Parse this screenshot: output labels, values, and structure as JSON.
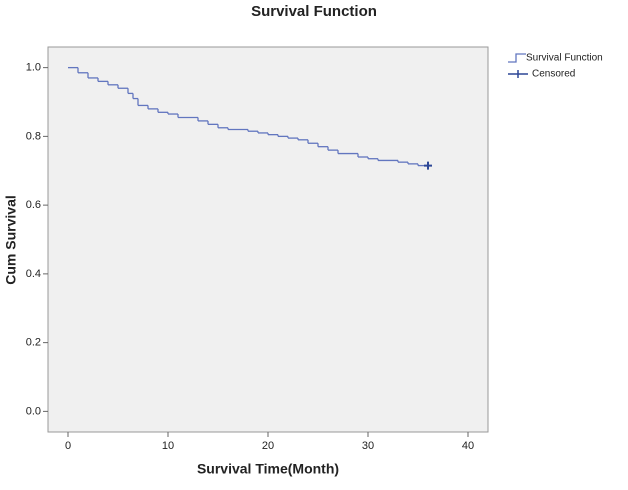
{
  "chart_data": {
    "type": "step",
    "title": "Survival Function",
    "x_label": "Survival Time(Month)",
    "y_label": "Cum Survival",
    "xlim": [
      -2,
      42
    ],
    "ylim": [
      -0.06,
      1.06
    ],
    "xticks": [
      0,
      10,
      20,
      30,
      40
    ],
    "yticks": [
      {
        "value": 0,
        "label": "0.0"
      },
      {
        "value": 0.2,
        "label": "0.2"
      },
      {
        "value": 0.4,
        "label": "0.4"
      },
      {
        "value": 0.6,
        "label": "0.6"
      },
      {
        "value": 0.8,
        "label": "0.8"
      },
      {
        "value": 1,
        "label": "1.0"
      }
    ],
    "legend": "top-right-outside",
    "series": [
      {
        "name": "Survival Function",
        "color": "#6276bf",
        "x": [
          0,
          1,
          2,
          3,
          4,
          5,
          6,
          6.5,
          7,
          8,
          9,
          10,
          11,
          13,
          14,
          15,
          16,
          18,
          19,
          20,
          21,
          22,
          23,
          24,
          25,
          26,
          27,
          29,
          30,
          31,
          33,
          34,
          35,
          36
        ],
        "values": [
          1.0,
          0.985,
          0.97,
          0.96,
          0.95,
          0.94,
          0.925,
          0.91,
          0.89,
          0.88,
          0.87,
          0.865,
          0.855,
          0.845,
          0.835,
          0.825,
          0.82,
          0.815,
          0.81,
          0.805,
          0.8,
          0.795,
          0.79,
          0.78,
          0.77,
          0.76,
          0.75,
          0.74,
          0.735,
          0.73,
          0.725,
          0.72,
          0.715,
          0.715
        ]
      },
      {
        "name": "Censored",
        "color": "#2d4796",
        "x": [
          36
        ],
        "values": [
          0.715
        ]
      }
    ]
  }
}
